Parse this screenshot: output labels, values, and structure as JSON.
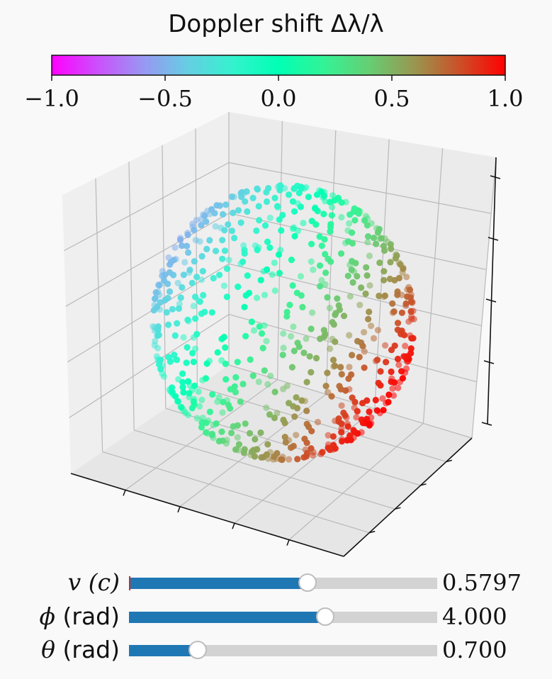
{
  "colorbar": {
    "title": "Doppler shift Δλ/λ",
    "ticks": [
      "−1.0",
      "−0.5",
      "0.0",
      "0.5",
      "1.0"
    ],
    "range": [
      -1.0,
      1.0
    ],
    "colormap": "rainbow"
  },
  "sliders": [
    {
      "symbol": "v",
      "unit": "(c)",
      "value": 0.5797,
      "value_label": "0.5797",
      "min": 0,
      "max": 1,
      "init": 0
    },
    {
      "symbol": "ϕ",
      "unit": "(rad)",
      "value": 4.0,
      "value_label": "4.000",
      "min": 0,
      "max": 6.283,
      "init": 0
    },
    {
      "symbol": "θ",
      "unit": "(rad)",
      "value": 0.7,
      "value_label": "0.700",
      "min": 0,
      "max": 3.1416,
      "init": 0
    }
  ],
  "chart_data": {
    "type": "scatter",
    "projection": "3d",
    "title": "",
    "xlabel": "",
    "ylabel": "",
    "zlabel": "",
    "axis_tick_labels": "hidden",
    "grid": true,
    "point_count": 900,
    "distribution": "unit sphere surface (points on the far hemisphere partly hidden by the viewing angle)",
    "color_value": "Doppler shift Δλ/λ",
    "color_range": [
      -1.0,
      1.0
    ],
    "trend": "upper-left of sphere blue (≈ -0.5), lower-right red (≈ +1.0)"
  }
}
